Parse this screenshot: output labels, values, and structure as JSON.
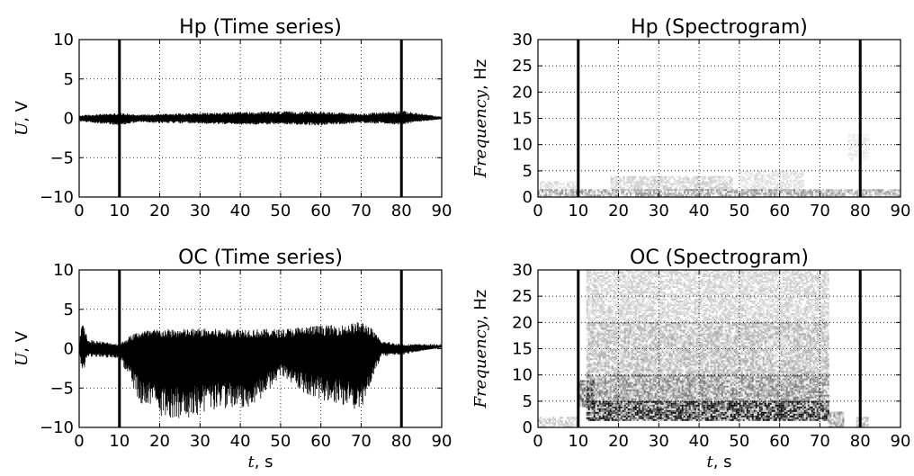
{
  "chart_data": [
    {
      "id": "hp_ts",
      "type": "line",
      "title": "Hp (Time series)",
      "xlabel": "",
      "ylabel_var": "U",
      "ylabel_unit": ", V",
      "xlim": [
        0,
        90
      ],
      "ylim": [
        -10,
        10
      ],
      "xticks": [
        0,
        10,
        20,
        30,
        40,
        50,
        60,
        70,
        80,
        90
      ],
      "yticks": [
        -10,
        -5,
        0,
        5,
        10
      ],
      "grid": true,
      "markers_x": [
        10,
        80
      ],
      "envelope": [
        [
          0,
          0.4,
          -0.4
        ],
        [
          10,
          0.7,
          -0.9
        ],
        [
          15,
          0.5,
          -0.5
        ],
        [
          20,
          0.6,
          -0.6
        ],
        [
          30,
          0.7,
          -0.7
        ],
        [
          40,
          0.8,
          -0.8
        ],
        [
          50,
          0.9,
          -0.8
        ],
        [
          60,
          0.9,
          -0.9
        ],
        [
          70,
          0.6,
          -0.6
        ],
        [
          80,
          1.0,
          -0.8
        ],
        [
          85,
          0.6,
          -0.4
        ],
        [
          90,
          0.2,
          -0.1
        ]
      ]
    },
    {
      "id": "hp_spec",
      "type": "heatmap",
      "title": "Hp (Spectrogram)",
      "xlabel": "",
      "ylabel_var": "Frequency",
      "ylabel_unit": ", Hz",
      "xlim": [
        0,
        90
      ],
      "ylim": [
        0,
        30
      ],
      "xticks": [
        0,
        10,
        20,
        30,
        40,
        50,
        60,
        70,
        80,
        90
      ],
      "yticks": [
        0,
        5,
        10,
        15,
        20,
        25,
        30
      ],
      "grid": true,
      "markers_x": [
        10,
        80
      ],
      "bands": [
        [
          0,
          90,
          0,
          1.5,
          0.35
        ],
        [
          0,
          10,
          1.5,
          3,
          0.15
        ],
        [
          18,
          48,
          1.5,
          4,
          0.18
        ],
        [
          50,
          66,
          1.5,
          5,
          0.12
        ],
        [
          77,
          82,
          7,
          12,
          0.08
        ]
      ]
    },
    {
      "id": "oc_ts",
      "type": "line",
      "title": "OC (Time series)",
      "xlabel_var": "t",
      "xlabel_unit": ", s",
      "ylabel_var": "U",
      "ylabel_unit": ", V",
      "xlim": [
        0,
        90
      ],
      "ylim": [
        -10,
        10
      ],
      "xticks": [
        0,
        10,
        20,
        30,
        40,
        50,
        60,
        70,
        80,
        90
      ],
      "yticks": [
        -10,
        -5,
        0,
        5,
        10
      ],
      "grid": true,
      "markers_x": [
        10,
        80
      ],
      "envelope": [
        [
          0,
          0.8,
          -0.8
        ],
        [
          1,
          4.2,
          -3.5
        ],
        [
          2,
          1.2,
          -1.0
        ],
        [
          10,
          0.6,
          -1.2
        ],
        [
          13,
          1.8,
          -4.5
        ],
        [
          15,
          2.3,
          -7.0
        ],
        [
          20,
          2.5,
          -8.5
        ],
        [
          25,
          2.5,
          -9.0
        ],
        [
          30,
          2.6,
          -8.5
        ],
        [
          35,
          2.5,
          -7.5
        ],
        [
          40,
          2.6,
          -8.0
        ],
        [
          45,
          2.5,
          -6.5
        ],
        [
          50,
          2.5,
          -3.5
        ],
        [
          55,
          2.8,
          -5.5
        ],
        [
          60,
          3.0,
          -6.5
        ],
        [
          65,
          3.0,
          -7.0
        ],
        [
          70,
          3.5,
          -8.0
        ],
        [
          72,
          3.0,
          -5.0
        ],
        [
          75,
          1.0,
          -1.0
        ],
        [
          80,
          0.6,
          -0.8
        ],
        [
          90,
          0.6,
          0.2
        ]
      ]
    },
    {
      "id": "oc_spec",
      "type": "heatmap",
      "title": "OC (Spectrogram)",
      "xlabel_var": "t",
      "xlabel_unit": ", s",
      "ylabel_var": "Frequency",
      "ylabel_unit": ", Hz",
      "xlim": [
        0,
        90
      ],
      "ylim": [
        0,
        30
      ],
      "xticks": [
        0,
        10,
        20,
        30,
        40,
        50,
        60,
        70,
        80,
        90
      ],
      "yticks": [
        0,
        5,
        10,
        15,
        20,
        25,
        30
      ],
      "grid": true,
      "markers_x": [
        10,
        80
      ],
      "bands": [
        [
          12,
          72,
          1.5,
          5,
          0.9
        ],
        [
          10,
          14,
          4,
          9,
          0.6
        ],
        [
          12,
          72,
          5,
          10,
          0.45
        ],
        [
          12,
          72,
          10,
          20,
          0.28
        ],
        [
          12,
          72,
          20,
          30,
          0.18
        ],
        [
          0,
          10,
          0,
          2,
          0.2
        ],
        [
          72,
          76,
          0,
          3,
          0.4
        ],
        [
          79,
          82,
          0,
          2,
          0.3
        ]
      ]
    }
  ]
}
